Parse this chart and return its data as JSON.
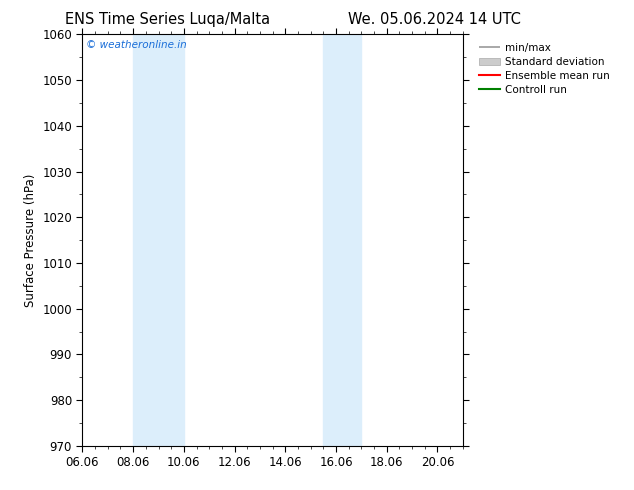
{
  "title_left": "ENS Time Series Luqa/Malta",
  "title_right": "We. 05.06.2024 14 UTC",
  "ylabel": "Surface Pressure (hPa)",
  "ylim": [
    970,
    1060
  ],
  "yticks": [
    970,
    980,
    990,
    1000,
    1010,
    1020,
    1030,
    1040,
    1050,
    1060
  ],
  "xlim": [
    0,
    15
  ],
  "xtick_labels": [
    "06.06",
    "08.06",
    "10.06",
    "12.06",
    "14.06",
    "16.06",
    "18.06",
    "20.06"
  ],
  "xtick_positions": [
    0,
    2,
    4,
    6,
    8,
    10,
    12,
    14
  ],
  "shaded_bands": [
    {
      "xmin": 2,
      "xmax": 4,
      "color": "#dceefb"
    },
    {
      "xmin": 9.5,
      "xmax": 11,
      "color": "#dceefb"
    }
  ],
  "watermark": "© weatheronline.in",
  "watermark_color": "#1a6ed8",
  "legend_labels": [
    "min/max",
    "Standard deviation",
    "Ensemble mean run",
    "Controll run"
  ],
  "legend_line_colors": [
    "#999999",
    "#cccccc",
    "#ff0000",
    "#008000"
  ],
  "background_color": "#ffffff",
  "tick_label_fontsize": 8.5,
  "title_fontsize": 10.5,
  "ylabel_fontsize": 8.5,
  "legend_fontsize": 7.5
}
